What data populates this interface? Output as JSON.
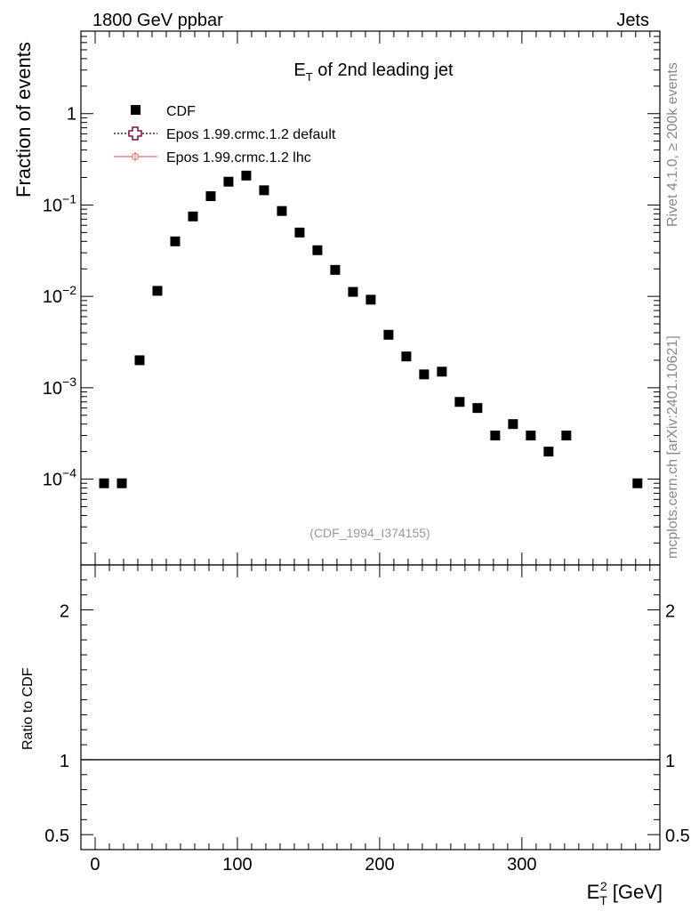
{
  "header": {
    "left_label": "1800 GeV ppbar",
    "right_label": "Jets"
  },
  "side_labels": {
    "rivet": "Rivet 4.1.0, ≥ 200k events",
    "mcplots": "mcplots.cern.ch [arXiv:2401.10621]"
  },
  "watermark": "(CDF_1994_I374155)",
  "colors": {
    "data": "#000000",
    "epos_default": "#7b1040",
    "epos_lhc": "#f08080",
    "frame": "#000000"
  },
  "chart_data": [
    {
      "type": "scatter",
      "title": "E_T of 2nd leading jet",
      "title_parts": {
        "main": "E",
        "sub": "T",
        "rest": " of 2nd leading jet"
      },
      "ylabel": "Fraction of events",
      "yscale": "log",
      "ylim": [
        1.15e-05,
        8
      ],
      "xlim": [
        -10,
        397
      ],
      "x_ticks": [
        0,
        100,
        200,
        300
      ],
      "y_ticks": [
        {
          "value": 1,
          "label": "1",
          "exponent": ""
        },
        {
          "value": 0.1,
          "label": "10",
          "exponent": "−1"
        },
        {
          "value": 0.01,
          "label": "10",
          "exponent": "−2"
        },
        {
          "value": 0.001,
          "label": "10",
          "exponent": "−3"
        },
        {
          "value": 0.0001,
          "label": "10",
          "exponent": "−4"
        }
      ],
      "legend": {
        "position": "top-left",
        "entries": [
          {
            "name": "CDF",
            "style": "marker"
          },
          {
            "name": "Epos 1.99.crmc.1.2 default",
            "style": "dotted"
          },
          {
            "name": "Epos 1.99.crmc.1.2 lhc",
            "style": "solid"
          }
        ]
      },
      "series": [
        {
          "name": "CDF",
          "x": [
            6.25,
            18.75,
            31.25,
            43.75,
            56.25,
            68.75,
            81.25,
            93.75,
            106.25,
            118.75,
            131.25,
            143.75,
            156.25,
            168.75,
            181.25,
            193.75,
            206.25,
            218.75,
            231.25,
            243.75,
            256.25,
            268.75,
            281.25,
            293.75,
            306.25,
            318.75,
            331.25,
            381.25
          ],
          "y": [
            9e-05,
            9e-05,
            0.002,
            0.0115,
            0.04,
            0.075,
            0.125,
            0.18,
            0.21,
            0.145,
            0.086,
            0.05,
            0.032,
            0.0195,
            0.0112,
            0.0092,
            0.0038,
            0.0022,
            0.0014,
            0.0015,
            0.0007,
            0.0006,
            0.0003,
            0.0004,
            0.0003,
            0.0002,
            0.0003,
            9e-05
          ]
        }
      ]
    },
    {
      "type": "line",
      "ylabel": "Ratio to CDF",
      "xlabel": "E_T^2 [GeV]",
      "xlabel_parts": {
        "main": "E",
        "sub": "T",
        "sup": "2",
        "rest": " [GeV]"
      },
      "ylim": [
        0.4,
        2.3
      ],
      "xlim": [
        -10,
        397
      ],
      "y_ticks": [
        {
          "value": 0.5,
          "label": "0.5"
        },
        {
          "value": 1,
          "label": "1"
        },
        {
          "value": 2,
          "label": "2"
        }
      ],
      "x_ticks": [
        0,
        100,
        200,
        300
      ],
      "series": [
        {
          "name": "reference",
          "x": [
            -10,
            397
          ],
          "y": [
            1,
            1
          ]
        }
      ]
    }
  ]
}
